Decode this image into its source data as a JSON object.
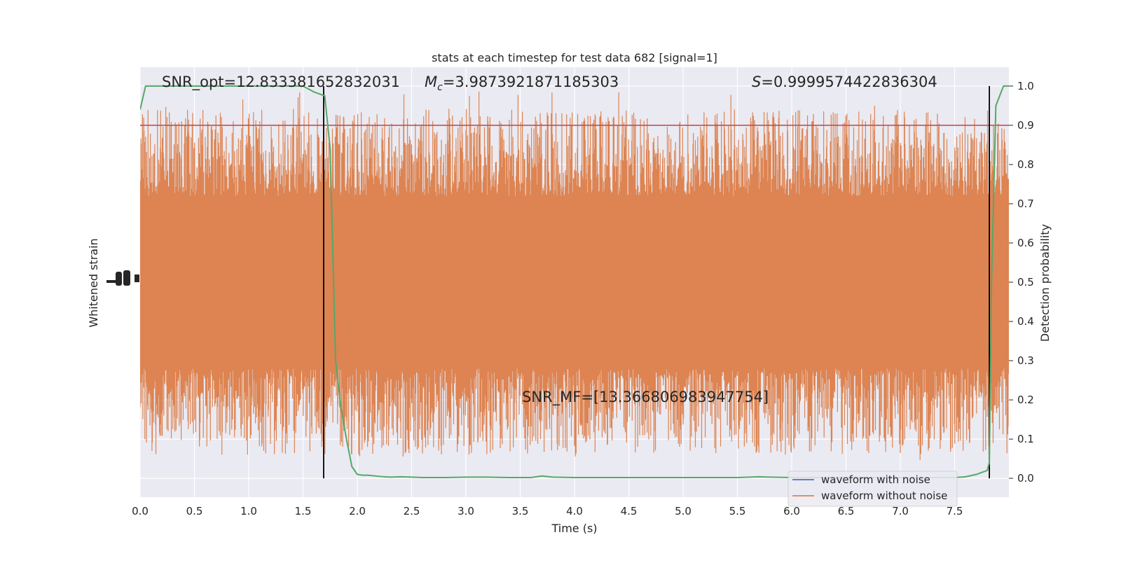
{
  "chart_data": {
    "type": "line",
    "title": "stats at each timestep for test data 682 [signal=1]",
    "xlabel": "Time (s)",
    "ylabel_left": "Whitened strain",
    "ylabel_right": "Detection probability",
    "xlim": [
      0,
      8
    ],
    "ylim_right": [
      -0.048,
      1.048
    ],
    "x_ticks": [
      "0.0",
      "0.5",
      "1.0",
      "1.5",
      "2.0",
      "2.5",
      "3.0",
      "3.5",
      "4.0",
      "4.5",
      "5.0",
      "5.5",
      "6.0",
      "6.5",
      "7.0",
      "7.5"
    ],
    "y_ticks_right": [
      "0.0",
      "0.1",
      "0.2",
      "0.3",
      "0.4",
      "0.5",
      "0.6",
      "0.7",
      "0.8",
      "0.9",
      "1.0"
    ],
    "grid": true,
    "legend": {
      "placement": "lower-right",
      "entries": [
        {
          "label": "waveform with noise",
          "color": "#4c72b0"
        },
        {
          "label": "waveform without noise",
          "color": "#dd8452"
        }
      ]
    },
    "annotations": {
      "snr_opt": "SNR_opt=12.833381652832031",
      "mc_symbol": "M",
      "mc_sub": "c",
      "mc_value": "=3.9873921871185303",
      "s_symbol": "S",
      "s_value": "=0.9999574422836304",
      "snr_mf": "SNR_MF=[13.366806983947754]"
    },
    "threshold": {
      "y": 0.9,
      "color": "#c44e52"
    },
    "vlines": [
      1.69,
      7.82
    ],
    "detection_probability": {
      "color": "#55a868",
      "x": [
        0.0,
        0.05,
        0.1,
        0.2,
        0.5,
        1.0,
        1.4,
        1.5,
        1.6,
        1.65,
        1.7,
        1.75,
        1.8,
        1.85,
        1.9,
        1.95,
        2.0,
        2.05,
        2.1,
        2.2,
        2.3,
        2.4,
        2.5,
        2.6,
        2.8,
        3.0,
        3.2,
        3.4,
        3.6,
        3.7,
        3.8,
        4.0,
        4.2,
        4.5,
        5.0,
        5.5,
        5.7,
        5.8,
        6.0,
        6.5,
        7.0,
        7.3,
        7.5,
        7.6,
        7.7,
        7.8,
        7.82,
        7.84,
        7.88,
        7.95,
        8.0
      ],
      "y": [
        0.94,
        1.0,
        1.0,
        1.0,
        1.0,
        1.0,
        1.0,
        1.0,
        0.985,
        0.98,
        0.975,
        0.84,
        0.3,
        0.18,
        0.1,
        0.03,
        0.01,
        0.008,
        0.008,
        0.005,
        0.003,
        0.004,
        0.003,
        0.002,
        0.002,
        0.003,
        0.003,
        0.002,
        0.002,
        0.006,
        0.003,
        0.002,
        0.002,
        0.002,
        0.002,
        0.002,
        0.004,
        0.003,
        0.002,
        0.002,
        0.002,
        0.002,
        0.002,
        0.004,
        0.01,
        0.02,
        0.04,
        0.5,
        0.95,
        1.0,
        1.0
      ]
    },
    "waveform_without_noise": {
      "color": "#dd8452",
      "band_y": [
        0.28,
        0.72
      ],
      "peak_range_y": [
        0.0,
        0.99
      ]
    }
  }
}
